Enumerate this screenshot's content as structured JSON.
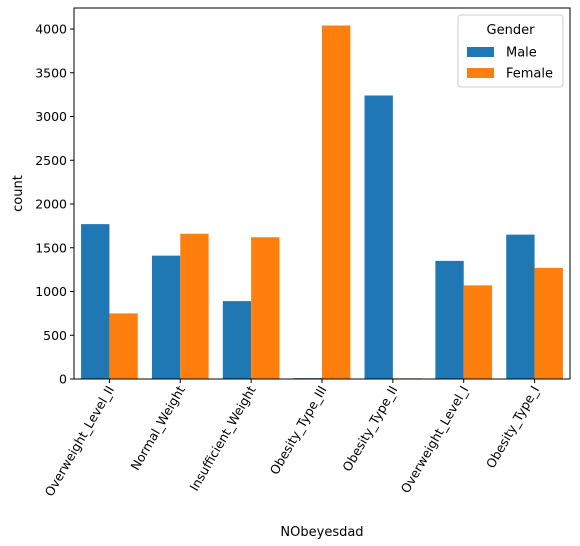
{
  "chart_data": {
    "type": "bar",
    "xlabel": "NObeyesdad",
    "ylabel": "count",
    "categories": [
      "Overweight_Level_II",
      "Normal_Weight",
      "Insufficient_Weight",
      "Obesity_Type_III",
      "Obesity_Type_II",
      "Overweight_Level_I",
      "Obesity_Type_I"
    ],
    "series": [
      {
        "name": "Male",
        "color": "#1f77b4",
        "values": [
          1770,
          1410,
          890,
          10,
          3240,
          1350,
          1650
        ]
      },
      {
        "name": "Female",
        "color": "#ff7f0e",
        "values": [
          750,
          1660,
          1620,
          4040,
          8,
          1070,
          1270
        ]
      }
    ],
    "ylim": [
      0,
      4240
    ],
    "yticks": [
      0,
      500,
      1000,
      1500,
      2000,
      2500,
      3000,
      3500,
      4000
    ],
    "grid": false,
    "legend": {
      "title": "Gender",
      "position": "top-right"
    }
  }
}
